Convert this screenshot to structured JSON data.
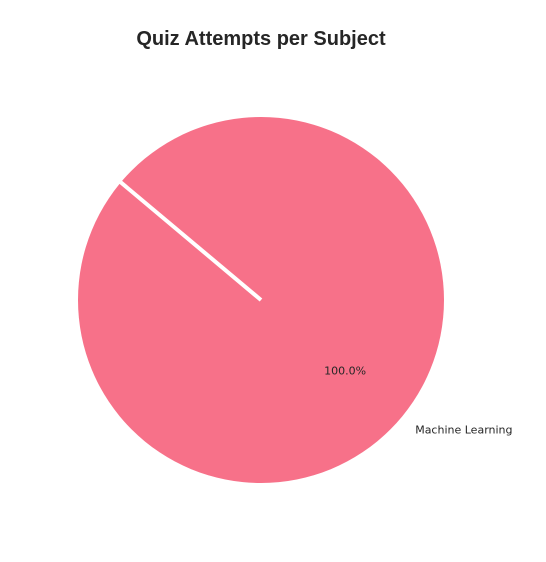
{
  "chart_data": {
    "type": "pie",
    "title": "Quiz Attempts per Subject",
    "categories": [
      "Machine Learning"
    ],
    "values": [
      1
    ],
    "percent_labels": [
      "100.0%"
    ],
    "colors": [
      "#f77189"
    ],
    "legend": "none"
  }
}
